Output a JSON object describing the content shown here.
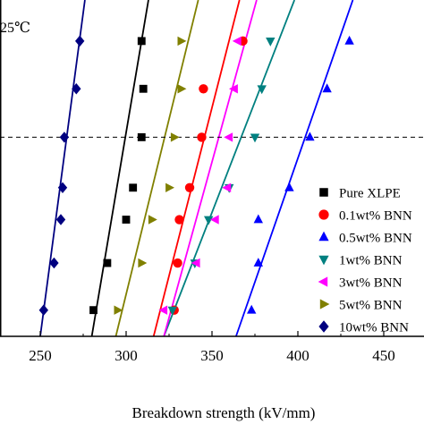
{
  "chart_data": {
    "type": "scatter",
    "title": "",
    "annotation": "25℃",
    "xlabel": "Breakdown strength (kV/mm)",
    "ylabel": "",
    "xlim": [
      226,
      474
    ],
    "ylim": [
      0,
      1
    ],
    "x_ticks": [
      250,
      300,
      350,
      400,
      450
    ],
    "x_tick_labels": [
      "250",
      "300",
      "350",
      "400",
      "450"
    ],
    "reference_line": {
      "y": 0.592,
      "style": "dashed"
    },
    "grid": false,
    "legend_position": "right",
    "series": [
      {
        "name": "Pure XLPE",
        "color": "#000000",
        "marker": "square",
        "x": [
          281,
          289,
          300,
          304,
          309,
          310,
          309
        ],
        "y": [
          0.078,
          0.218,
          0.347,
          0.442,
          0.592,
          0.736,
          0.878
        ],
        "fit_line": {
          "x": [
            280,
            313
          ],
          "y": [
            0.0,
            1.0
          ]
        }
      },
      {
        "name": "0.1wt% BNN",
        "color": "#ff0000",
        "marker": "circle",
        "x": [
          328,
          330,
          331,
          337,
          344,
          345,
          368
        ],
        "y": [
          0.078,
          0.218,
          0.347,
          0.442,
          0.592,
          0.736,
          0.878
        ],
        "fit_line": {
          "x": [
            316,
            366
          ],
          "y": [
            0.0,
            1.0
          ]
        }
      },
      {
        "name": "0.5wt% BNN",
        "color": "#0000ff",
        "marker": "triangle-up",
        "x": [
          373,
          377,
          377,
          395,
          407,
          417,
          430
        ],
        "y": [
          0.078,
          0.218,
          0.347,
          0.442,
          0.592,
          0.736,
          0.878
        ],
        "fit_line": {
          "x": [
            364,
            432
          ],
          "y": [
            0.0,
            1.0
          ]
        }
      },
      {
        "name": "1wt% BNN",
        "color": "#008080",
        "marker": "triangle-down",
        "x": [
          327,
          340,
          348,
          360,
          375,
          379,
          384
        ],
        "y": [
          0.078,
          0.218,
          0.347,
          0.442,
          0.592,
          0.736,
          0.878
        ],
        "fit_line": {
          "x": [
            322,
            398
          ],
          "y": [
            0.0,
            1.0
          ]
        }
      },
      {
        "name": "3wt% BNN",
        "color": "#ff00ff",
        "marker": "triangle-left",
        "x": [
          322,
          341,
          352,
          359,
          360,
          363,
          365
        ],
        "y": [
          0.078,
          0.218,
          0.347,
          0.442,
          0.592,
          0.736,
          0.878
        ],
        "fit_line": {
          "x": [
            322,
            376
          ],
          "y": [
            0.0,
            1.0
          ]
        }
      },
      {
        "name": "5wt% BNN",
        "color": "#808000",
        "marker": "triangle-right",
        "x": [
          295,
          309,
          315,
          325,
          328,
          332,
          332
        ],
        "y": [
          0.078,
          0.218,
          0.347,
          0.442,
          0.592,
          0.736,
          0.878
        ],
        "fit_line": {
          "x": [
            294,
            342
          ],
          "y": [
            0.0,
            1.0
          ]
        }
      },
      {
        "name": "10wt% BNN",
        "color": "#000080",
        "marker": "diamond",
        "x": [
          252,
          258,
          262,
          263,
          264,
          271,
          273
        ],
        "y": [
          0.078,
          0.218,
          0.347,
          0.442,
          0.592,
          0.736,
          0.878
        ],
        "fit_line": {
          "x": [
            250,
            276
          ],
          "y": [
            0.0,
            1.0
          ]
        }
      }
    ]
  }
}
